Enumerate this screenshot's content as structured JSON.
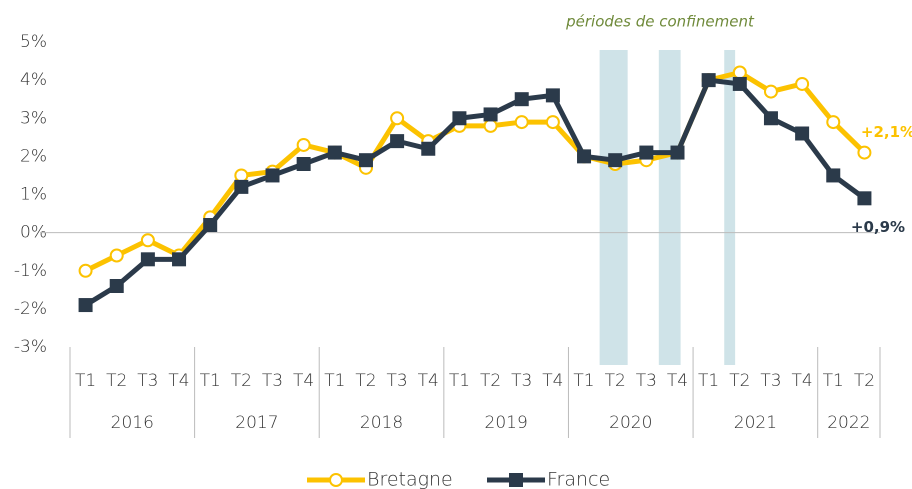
{
  "chart_data": {
    "type": "line",
    "categories": [
      "T1",
      "T2",
      "T3",
      "T4",
      "T1",
      "T2",
      "T3",
      "T4",
      "T1",
      "T2",
      "T3",
      "T4",
      "T1",
      "T2",
      "T3",
      "T4",
      "T1",
      "T2",
      "T3",
      "T4",
      "T1",
      "T2",
      "T3",
      "T4",
      "T1",
      "T2"
    ],
    "groups": [
      {
        "label": "2016",
        "count": 4
      },
      {
        "label": "2017",
        "count": 4
      },
      {
        "label": "2018",
        "count": 4
      },
      {
        "label": "2019",
        "count": 4
      },
      {
        "label": "2020",
        "count": 4
      },
      {
        "label": "2021",
        "count": 4
      },
      {
        "label": "2022",
        "count": 2
      }
    ],
    "series": [
      {
        "name": "Bretagne",
        "color": "#fcc200",
        "marker": "circle",
        "values": [
          -1.0,
          -0.6,
          -0.2,
          -0.6,
          0.4,
          1.5,
          1.6,
          2.3,
          2.1,
          1.7,
          3.0,
          2.4,
          2.8,
          2.8,
          2.9,
          2.9,
          2.0,
          1.8,
          1.9,
          2.1,
          4.0,
          4.2,
          3.7,
          3.9,
          2.9,
          2.1
        ]
      },
      {
        "name": "France",
        "color": "#2b3a4a",
        "marker": "square",
        "values": [
          -1.9,
          -1.4,
          -0.7,
          -0.7,
          0.2,
          1.2,
          1.5,
          1.8,
          2.1,
          1.9,
          2.4,
          2.2,
          3.0,
          3.1,
          3.5,
          3.6,
          2.0,
          1.9,
          2.1,
          2.1,
          4.0,
          3.9,
          3.0,
          2.6,
          1.5,
          0.9
        ]
      }
    ],
    "ylim": [
      -3,
      5
    ],
    "yticks": [
      {
        "value": -3,
        "label": "-3%"
      },
      {
        "value": -2,
        "label": "-2%"
      },
      {
        "value": -1,
        "label": "-1%"
      },
      {
        "value": 0,
        "label": "0%"
      },
      {
        "value": 1,
        "label": "1%"
      },
      {
        "value": 2,
        "label": "2%"
      },
      {
        "value": 3,
        "label": "3%"
      },
      {
        "value": 4,
        "label": "4%"
      },
      {
        "value": 5,
        "label": "5%"
      }
    ],
    "shaded_regions": [
      {
        "from": 17.0,
        "to": 17.9
      },
      {
        "from": 18.9,
        "to": 19.6
      },
      {
        "from": 21.0,
        "to": 21.35
      }
    ],
    "shaded_color": "#cfe3e8",
    "shaded_label": "périodes de confinement",
    "annotations": [
      {
        "text": "+2,1%",
        "series": 0
      },
      {
        "text": "+0,9%",
        "series": 1
      }
    ]
  }
}
